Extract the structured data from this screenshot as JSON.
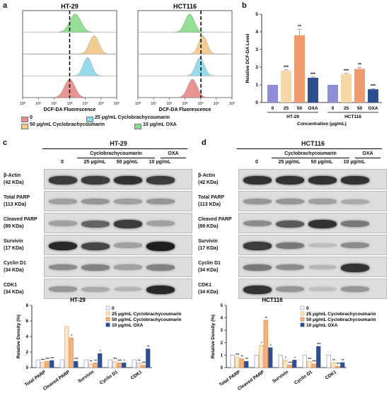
{
  "panels": {
    "a": "a",
    "b": "b",
    "c": "c",
    "d": "d"
  },
  "colors": {
    "c0": "#e88d8d",
    "c25": "#f2c98e",
    "c50": "#8fd8ea",
    "c10": "#8fdc8f",
    "barc0": "#8f8fd8",
    "barc25": "#f7d7a6",
    "barc50": "#ef9b6d",
    "barc10": "#2d4f8f"
  },
  "panel_a": {
    "plots": [
      {
        "title": "HT-29"
      },
      {
        "title": "HCT116"
      }
    ],
    "xlabel": "DCF-DA Fluorescence",
    "xticks": [
      "10⁰",
      "10¹",
      "10²",
      "10³",
      "10⁴",
      "10⁵",
      "10⁶"
    ],
    "legend": [
      {
        "label": "0",
        "color": "#e88d8d"
      },
      {
        "label": "25 μg/mL Cyclobrachycoumarin",
        "color": "#8fd8ea"
      },
      {
        "label": "50 μg/mL Cyclobrachycoumarin",
        "color": "#f2c98e"
      },
      {
        "label": "10 μg/mL OXA",
        "color": "#8fdc8f"
      }
    ]
  },
  "chart_data": [
    {
      "type": "bar",
      "title": "",
      "xlabel": "Concentration (μg/mL)",
      "ylabel": "Relative DCF-DA Level",
      "ylim": [
        0,
        5
      ],
      "yticks": [
        "0",
        "1",
        "2",
        "3",
        "4",
        "5"
      ],
      "groups": [
        "HT-29",
        "HCT116"
      ],
      "categories": [
        "0",
        "25",
        "50",
        "OXA"
      ],
      "series": [
        {
          "group": "HT-29",
          "values": [
            1.0,
            1.8,
            3.8,
            1.4
          ],
          "errors": [
            0,
            0.05,
            0.35,
            0.05
          ],
          "sig": [
            "",
            "***",
            "**",
            "***"
          ]
        },
        {
          "group": "HCT116",
          "values": [
            1.0,
            1.6,
            1.9,
            0.75
          ],
          "errors": [
            0,
            0.05,
            0.08,
            0.03
          ],
          "sig": [
            "",
            "***",
            "**",
            "***"
          ]
        }
      ]
    },
    {
      "type": "bar",
      "title": "HT-29",
      "ylabel": "Relative Density (%)",
      "ylim": [
        0,
        8
      ],
      "yticks": [
        "0",
        "2",
        "4",
        "6",
        "8"
      ],
      "categories": [
        "Total PARP",
        "Cleaved PARP",
        "Survivin",
        "Cyclin D1",
        "CDK1"
      ],
      "series": [
        {
          "name": "0",
          "values": [
            1,
            1,
            1,
            1,
            1
          ]
        },
        {
          "name": "25 μg/mL Cyclobrachycoumarin",
          "values": [
            0.7,
            5.3,
            0.5,
            0.8,
            0.6
          ]
        },
        {
          "name": "50 μg/mL Cyclobrachycoumarin",
          "values": [
            0.8,
            3.8,
            0.6,
            0.6,
            0.3
          ]
        },
        {
          "name": "10 μg/mL OXA",
          "values": [
            0.9,
            0.8,
            1.8,
            0.6,
            2.4
          ]
        }
      ],
      "sig": [
        [
          "",
          "***",
          "***",
          "***"
        ],
        [
          "",
          "",
          "*",
          "***"
        ],
        [
          "",
          "**",
          "**",
          "*"
        ],
        [
          "",
          "***",
          "***",
          "*"
        ],
        [
          "",
          "**",
          "***",
          "**"
        ]
      ]
    },
    {
      "type": "bar",
      "title": "HCT116",
      "ylabel": "Relative Density (%)",
      "ylim": [
        0,
        5
      ],
      "yticks": [
        "0",
        "1",
        "2",
        "3",
        "4",
        "5"
      ],
      "categories": [
        "Total PARP",
        "Cleaved PARP",
        "Survivin",
        "Cyclin D1",
        "CDK1"
      ],
      "series": [
        {
          "name": "0",
          "values": [
            1,
            1,
            1,
            1,
            1
          ]
        },
        {
          "name": "25 μg/mL Cyclobrachycoumarin",
          "values": [
            0.85,
            1.8,
            0.6,
            0.5,
            0.4
          ]
        },
        {
          "name": "50 μg/mL Cyclobrachycoumarin",
          "values": [
            0.7,
            3.8,
            0.2,
            0.3,
            0.1
          ]
        },
        {
          "name": "10 μg/mL OXA",
          "values": [
            0.5,
            1.6,
            0.6,
            1.7,
            0.4
          ]
        }
      ],
      "sig": [
        [
          "",
          "***",
          "**",
          "**"
        ],
        [
          "",
          "*",
          "**",
          "*"
        ],
        [
          "",
          "*",
          "***",
          "*"
        ],
        [
          "",
          "***",
          "***",
          "***"
        ],
        [
          "",
          "**",
          "***",
          "**"
        ]
      ]
    }
  ],
  "blot_c": {
    "title": "HT-29",
    "group_label": "Cyclobrachycoumarin",
    "oxa_label": "OXA",
    "lanes": [
      "0",
      "25 μg/mL",
      "50 μg/mL",
      "10 μg/mL"
    ],
    "rows": [
      {
        "name": "β-Actin",
        "kda": "(42 KDa)",
        "intensity": [
          0.8,
          0.8,
          0.85,
          0.8
        ]
      },
      {
        "name": "Total PARP",
        "kda": "(113 KDa)",
        "intensity": [
          0.3,
          0.35,
          0.3,
          0.35
        ]
      },
      {
        "name": "Cleaved PARP",
        "kda": "(89 KDa)",
        "intensity": [
          0.3,
          0.6,
          0.8,
          0.3
        ]
      },
      {
        "name": "Survivin",
        "kda": "(17 KDa)",
        "intensity": [
          0.9,
          0.75,
          0.3,
          0.95
        ]
      },
      {
        "name": "Cyclin D1",
        "kda": "(34 KDa)",
        "intensity": [
          0.4,
          0.45,
          0.3,
          0.45
        ]
      },
      {
        "name": "CDK1",
        "kda": "(34 KDa)",
        "intensity": [
          0.35,
          0.25,
          0.2,
          0.9
        ]
      }
    ]
  },
  "blot_d": {
    "title": "HCT116",
    "group_label": "Cyclobrachycoumarin",
    "oxa_label": "OXA",
    "lanes": [
      "0",
      "25 μg/mL",
      "50 μg/mL",
      "10 μg/mL"
    ],
    "rows": [
      {
        "name": "β-Actin",
        "kda": "(42 KDa)",
        "intensity": [
          0.85,
          0.85,
          0.85,
          0.85
        ]
      },
      {
        "name": "Total PARP",
        "kda": "(113 KDa)",
        "intensity": [
          0.35,
          0.35,
          0.3,
          0.25
        ]
      },
      {
        "name": "Cleaved PARP",
        "kda": "(89 KDa)",
        "intensity": [
          0.4,
          0.65,
          0.85,
          0.5
        ]
      },
      {
        "name": "Survivin",
        "kda": "(17 KDa)",
        "intensity": [
          0.8,
          0.5,
          0.15,
          0.4
        ]
      },
      {
        "name": "Cyclin D1",
        "kda": "(34 KDa)",
        "intensity": [
          0.5,
          0.4,
          0.2,
          0.85
        ]
      },
      {
        "name": "CDK1",
        "kda": "(34 KDa)",
        "intensity": [
          0.85,
          0.35,
          0.15,
          0.35
        ]
      }
    ]
  }
}
